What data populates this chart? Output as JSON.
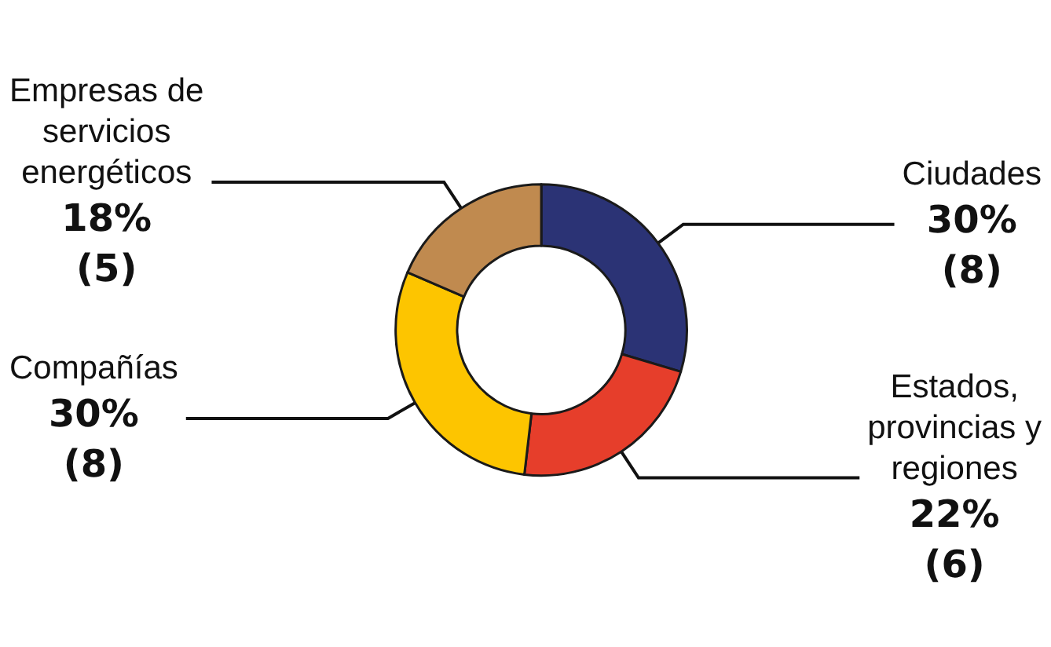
{
  "chart_data": {
    "type": "donut",
    "categories": [
      "Ciudades",
      "Estados, provincias y regiones",
      "Compañías",
      "Empresas de servicios energéticos"
    ],
    "values": [
      8,
      6,
      8,
      5
    ],
    "colors": [
      "#2b3375",
      "#e63e2b",
      "#fdc500",
      "#c08a4f"
    ],
    "value_labels": [
      "30%\n(8)",
      "22%\n(6)",
      "30%\n(8)",
      "18%\n(5)"
    ],
    "legend": false
  }
}
